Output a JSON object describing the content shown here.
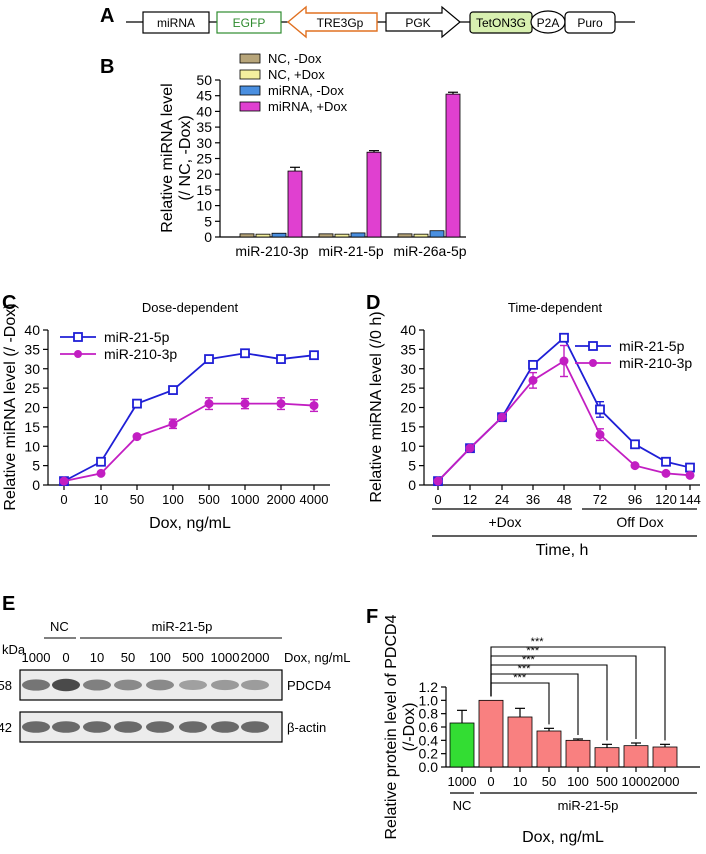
{
  "panels": {
    "A": "A",
    "B": "B",
    "C": "C",
    "D": "D",
    "E": "E",
    "F": "F"
  },
  "construct": [
    {
      "label": "miRNA",
      "color": "#000000"
    },
    {
      "label": "EGFP",
      "color": "#2e8b2e"
    },
    {
      "label": "TRE3Gp",
      "color": "#000000"
    },
    {
      "label": "PGK",
      "color": "#000000"
    },
    {
      "label": "TetON3G",
      "color": "#000000"
    },
    {
      "label": "P2A",
      "color": "#000000"
    },
    {
      "label": "Puro",
      "color": "#000000"
    }
  ],
  "western": {
    "kda_label": "kDa",
    "group_nc": "NC",
    "group_mir": "miR-21-5p",
    "doses": [
      "1000",
      "0",
      "10",
      "50",
      "100",
      "500",
      "1000",
      "2000"
    ],
    "dose_unit": "Dox, ng/mL",
    "blots": [
      {
        "kda": "58",
        "protein": "PDCD4",
        "intensity": [
          0.55,
          0.75,
          0.5,
          0.45,
          0.45,
          0.35,
          0.38,
          0.37
        ]
      },
      {
        "kda": "42",
        "protein": "β-actin",
        "intensity": [
          0.6,
          0.6,
          0.6,
          0.6,
          0.6,
          0.6,
          0.6,
          0.6
        ]
      }
    ]
  },
  "chart_data": [
    {
      "id": "B",
      "type": "bar",
      "categories": [
        "miR-210-3p",
        "miR-21-5p",
        "miR-26a-5p"
      ],
      "ylabel": "Relative miRNA level (/ NC, -Dox)",
      "ylim": [
        0,
        50
      ],
      "yticks": [
        0,
        5,
        10,
        15,
        20,
        25,
        30,
        35,
        40,
        45,
        50
      ],
      "legend_position": "top-left",
      "series": [
        {
          "name": "NC, -Dox",
          "color": "#b7a57a",
          "values": [
            1.0,
            1.0,
            1.0
          ],
          "errors": [
            0,
            0,
            0
          ]
        },
        {
          "name": "NC, +Dox",
          "color": "#f3ef9e",
          "values": [
            0.9,
            0.9,
            0.9
          ],
          "errors": [
            0,
            0,
            0
          ]
        },
        {
          "name": "miRNA, -Dox",
          "color": "#4a8fe0",
          "values": [
            1.2,
            1.3,
            2.0
          ],
          "errors": [
            0,
            0,
            0
          ]
        },
        {
          "name": "miRNA, +Dox",
          "color": "#e040d0",
          "values": [
            21,
            27,
            45.5
          ],
          "errors": [
            1.2,
            0.5,
            0.6
          ]
        }
      ]
    },
    {
      "id": "C",
      "type": "line",
      "title": "Dose-dependent",
      "categories": [
        "0",
        "10",
        "50",
        "100",
        "500",
        "1000",
        "2000",
        "4000"
      ],
      "xlabel": "Dox, ng/mL",
      "ylabel": "Relative miRNA level (/ -Dox)",
      "ylim": [
        0,
        40
      ],
      "yticks": [
        0,
        5,
        10,
        15,
        20,
        25,
        30,
        35,
        40
      ],
      "legend_position": "top-left",
      "series": [
        {
          "name": "miR-21-5p",
          "color": "#1f1fd6",
          "marker": "square",
          "values": [
            1,
            6,
            21,
            24.5,
            32.5,
            34,
            32.5,
            33.5
          ],
          "errors": [
            0,
            0,
            0,
            0,
            0,
            0,
            0,
            1
          ]
        },
        {
          "name": "miR-210-3p",
          "color": "#c21ec2",
          "marker": "circle",
          "values": [
            1,
            3,
            12.5,
            15.8,
            21,
            21,
            21,
            20.5
          ],
          "errors": [
            0,
            0,
            0,
            1.2,
            1.5,
            1.3,
            1.5,
            1.5
          ]
        }
      ]
    },
    {
      "id": "D",
      "type": "line",
      "title": "Time-dependent",
      "categories": [
        "0",
        "12",
        "24",
        "36",
        "48",
        "72",
        "96",
        "120",
        "144"
      ],
      "xlabel": "Time, h",
      "ylabel": "Relative miRNA level (/0 h)",
      "ylim": [
        0,
        40
      ],
      "yticks": [
        0,
        5,
        10,
        15,
        20,
        25,
        30,
        35,
        40
      ],
      "legend_position": "top-right",
      "brackets": [
        "+Dox",
        "Off Dox"
      ],
      "series": [
        {
          "name": "miR-21-5p",
          "color": "#1f1fd6",
          "marker": "square",
          "values": [
            1,
            9.5,
            17.5,
            31,
            38,
            19.5,
            10.5,
            6,
            4.5
          ],
          "errors": [
            0,
            0,
            0,
            0,
            0,
            2,
            0,
            0,
            0
          ]
        },
        {
          "name": "miR-210-3p",
          "color": "#c21ec2",
          "marker": "circle",
          "values": [
            1,
            9.5,
            17.5,
            27,
            32,
            13,
            5,
            3,
            2.5
          ],
          "errors": [
            0,
            0,
            0,
            2,
            4,
            1.5,
            0,
            0,
            0
          ]
        }
      ]
    },
    {
      "id": "F",
      "type": "bar",
      "categories": [
        "1000",
        "0",
        "10",
        "50",
        "100",
        "500",
        "1000",
        "2000"
      ],
      "group_labels": [
        "NC",
        "miR-21-5p"
      ],
      "xlabel": "Dox, ng/mL",
      "ylabel": "Relative protein level of PDCD4 (/-Dox)",
      "ylim": [
        0,
        1.2
      ],
      "yticks": [
        "0.0",
        "0.2",
        "0.4",
        "0.6",
        "0.8",
        "1.0",
        "1.2"
      ],
      "significance": "***",
      "values": [
        0.66,
        1.0,
        0.75,
        0.54,
        0.4,
        0.29,
        0.32,
        0.3
      ],
      "errors": [
        0.19,
        0,
        0.13,
        0.04,
        0.02,
        0.05,
        0.04,
        0.04
      ],
      "colors": [
        "#33dd33",
        "#f98080",
        "#f98080",
        "#f98080",
        "#f98080",
        "#f98080",
        "#f98080",
        "#f98080"
      ]
    }
  ]
}
